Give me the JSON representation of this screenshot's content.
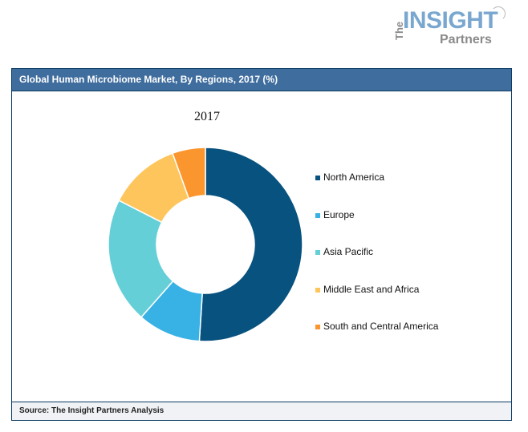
{
  "logo": {
    "the": "The",
    "insight": "INSIGHT",
    "partners": "Partners"
  },
  "header": {
    "title": "Global Human Microbiome Market, By Regions, 2017 (%)"
  },
  "footer": {
    "source": "Source: The Insight Partners Analysis"
  },
  "colors": {
    "header_bg": "#3f6d9e",
    "border": "#0b3a63",
    "footer_bg": "#f0f2f5"
  },
  "chart_data": {
    "type": "pie",
    "subtype": "donut",
    "title": "2017",
    "categories": [
      "North America",
      "Europe",
      "Asia Pacific",
      "Middle East and Africa",
      "South and Central America"
    ],
    "values": [
      51.0,
      10.5,
      21.0,
      12.0,
      5.5
    ],
    "colors": [
      "#08527f",
      "#38b1e4",
      "#65cfd8",
      "#fdc55c",
      "#fb952d"
    ],
    "unit": "%",
    "legend_position": "right",
    "start_angle": "12 o'clock, clockwise"
  }
}
